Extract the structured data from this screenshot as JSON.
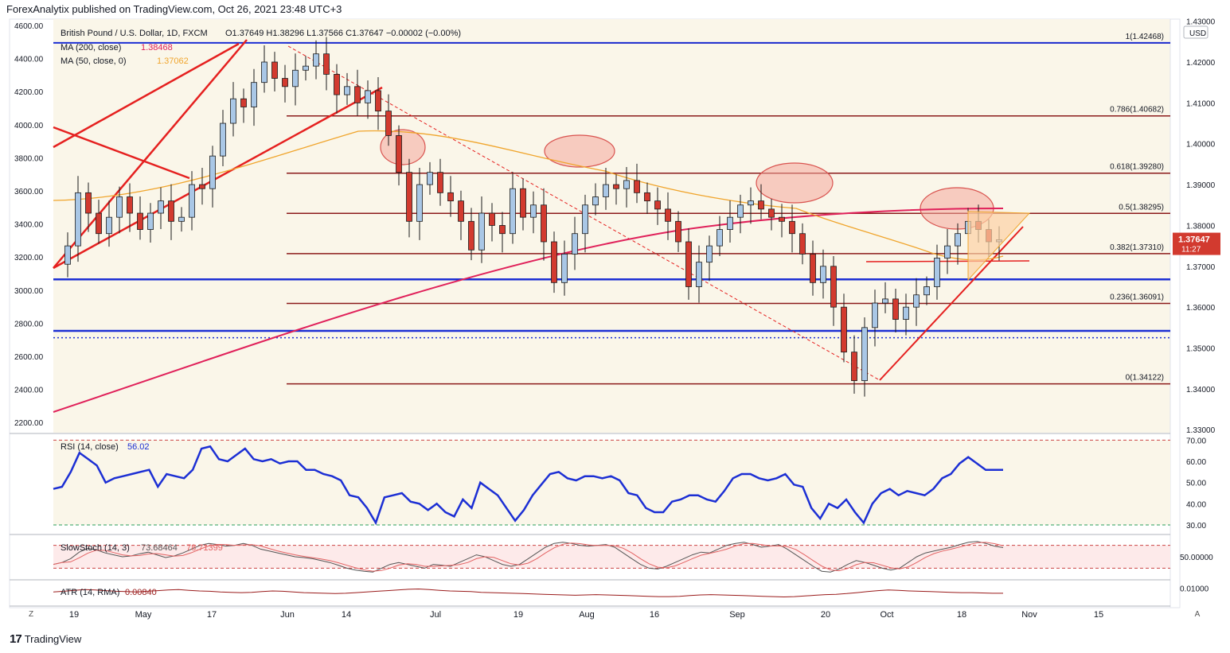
{
  "publisher_line": "ForexAnalytix published on TradingView.com, Oct 26, 2021 23:48 UTC+3",
  "footer_brand": "TradingView",
  "corner_buttons": {
    "left": "Z",
    "right": "A"
  },
  "colors": {
    "up_candle": "#a9c7e6",
    "down_candle": "#d23a2f",
    "ma200": "#e0215a",
    "ma50": "#f0a52d",
    "fib_line": "#8b1a1a",
    "support_blue": "#1c2fd4",
    "trend_red": "#e5201f",
    "rsi_line": "#1c2fd4",
    "stoch_k": "#555555",
    "stoch_d": "#e36363",
    "atr": "#9a1b1b",
    "highlight_ellipse": "#f4a79c",
    "triangle_fill": "#fcd2a4",
    "panel_bg": "#faf6e9"
  },
  "chart_data": [
    {
      "type": "candlestick",
      "title": "British Pound / U.S. Dollar, 1D, FXCM",
      "ohlc_header": {
        "o": "O1.37649",
        "h": "H1.38296",
        "l": "L1.37566",
        "c": "C1.37647",
        "chg": "−0.00002 (−0.00%)"
      },
      "indicators": [
        {
          "label": "MA (200, close)",
          "value": "1.38468"
        },
        {
          "label": "MA (50, close, 0)",
          "value": "1.37062"
        }
      ],
      "currency": "USD",
      "last_price": "1.37647",
      "countdown": "11:27",
      "right_ticks": [
        "1.43000",
        "1.42000",
        "1.41000",
        "1.40000",
        "1.39000",
        "1.38000",
        "1.37000",
        "1.36000",
        "1.35000",
        "1.34000",
        "1.33000"
      ],
      "left_ticks": [
        "4600.00",
        "4400.00",
        "4200.00",
        "4000.00",
        "3800.00",
        "3600.00",
        "3400.00",
        "3200.00",
        "3000.00",
        "2800.00",
        "2600.00",
        "2400.00",
        "2200.00"
      ],
      "fib_levels": [
        {
          "label": "1(1.42468)",
          "price": 1.42468
        },
        {
          "label": "0.786(1.40682)",
          "price": 1.40682
        },
        {
          "label": "0.618(1.39280)",
          "price": 1.3928
        },
        {
          "label": "0.5(1.38295)",
          "price": 1.38295
        },
        {
          "label": "0.382(1.37310)",
          "price": 1.3731
        },
        {
          "label": "0.236(1.36091)",
          "price": 1.36091
        },
        {
          "label": "0(1.34122)",
          "price": 1.34122
        }
      ],
      "support_levels": [
        1.4247,
        1.3668,
        1.3542,
        1.3525
      ],
      "x_ticks": [
        "19",
        "May",
        "17",
        "Jun",
        "14",
        "Jul",
        "19",
        "Aug",
        "16",
        "Sep",
        "20",
        "Oct",
        "18",
        "Nov",
        "15"
      ],
      "close_path": [
        1.3705,
        1.375,
        1.388,
        1.383,
        1.378,
        1.382,
        1.387,
        1.383,
        1.379,
        1.383,
        1.386,
        1.381,
        1.382,
        1.39,
        1.389,
        1.397,
        1.405,
        1.411,
        1.409,
        1.415,
        1.42,
        1.416,
        1.414,
        1.418,
        1.419,
        1.422,
        1.417,
        1.412,
        1.414,
        1.41,
        1.413,
        1.408,
        1.402,
        1.393,
        1.381,
        1.39,
        1.393,
        1.388,
        1.386,
        1.381,
        1.374,
        1.383,
        1.38,
        1.378,
        1.389,
        1.382,
        1.385,
        1.376,
        1.366,
        1.373,
        1.378,
        1.385,
        1.387,
        1.39,
        1.389,
        1.391,
        1.388,
        1.386,
        1.384,
        1.381,
        1.376,
        1.365,
        1.371,
        1.375,
        1.379,
        1.382,
        1.385,
        1.386,
        1.384,
        1.382,
        1.381,
        1.378,
        1.373,
        1.366,
        1.37,
        1.36,
        1.349,
        1.342,
        1.355,
        1.361,
        1.362,
        1.357,
        1.36,
        1.363,
        1.365,
        1.372,
        1.375,
        1.378,
        1.381,
        1.379,
        1.376,
        1.3765
      ]
    },
    {
      "type": "line",
      "title": "RSI (14, close)",
      "last_value": "56.02",
      "ticks": [
        "70.00",
        "60.00",
        "50.00",
        "40.00",
        "30.00"
      ],
      "ylim": [
        27,
        72
      ],
      "values": [
        47,
        48,
        55,
        64,
        61,
        58,
        50,
        52,
        53,
        54,
        55,
        56,
        48,
        54,
        53,
        52,
        56,
        66,
        67,
        61,
        60,
        63,
        66,
        61,
        60,
        61,
        59,
        60,
        60,
        56,
        56,
        54,
        53,
        51,
        44,
        43,
        38,
        31,
        43,
        44,
        45,
        41,
        40,
        37,
        40,
        36,
        34,
        42,
        38,
        50,
        47,
        44,
        38,
        32,
        37,
        44,
        49,
        54,
        55,
        52,
        51,
        53,
        53,
        52,
        53,
        51,
        45,
        44,
        38,
        36,
        36,
        41,
        42,
        44,
        44,
        42,
        41,
        46,
        52,
        54,
        54,
        52,
        51,
        52,
        54,
        49,
        48,
        38,
        33,
        40,
        38,
        42,
        36,
        31,
        40,
        45,
        47,
        44,
        46,
        45,
        44,
        47,
        52,
        54,
        59,
        62,
        59,
        56,
        56,
        56
      ]
    },
    {
      "type": "line",
      "title": "SlowStoch (14, 3)",
      "series": [
        {
          "name": "%K",
          "last_value": "73.68464"
        },
        {
          "name": "%D",
          "last_value": "78.71399"
        }
      ],
      "ticks": [
        "50.00000"
      ],
      "ylim": [
        0,
        100
      ],
      "k_values": [
        30,
        35,
        45,
        62,
        72,
        68,
        60,
        55,
        50,
        52,
        58,
        62,
        55,
        48,
        52,
        60,
        70,
        80,
        85,
        82,
        78,
        80,
        85,
        80,
        70,
        65,
        60,
        55,
        50,
        48,
        45,
        40,
        35,
        28,
        20,
        15,
        12,
        10,
        20,
        30,
        35,
        30,
        25,
        20,
        30,
        28,
        25,
        35,
        45,
        55,
        50,
        40,
        30,
        25,
        30,
        45,
        60,
        75,
        85,
        88,
        85,
        80,
        78,
        80,
        82,
        75,
        60,
        45,
        30,
        20,
        18,
        25,
        35,
        45,
        55,
        62,
        60,
        70,
        80,
        85,
        88,
        82,
        75,
        78,
        82,
        70,
        55,
        40,
        25,
        12,
        10,
        18,
        30,
        40,
        35,
        28,
        20,
        15,
        20,
        35,
        50,
        60,
        65,
        70,
        75,
        82,
        88,
        90,
        85,
        78,
        74
      ]
    },
    {
      "type": "line",
      "title": "ATR (14, RMA)",
      "last_value": "0.00840",
      "ticks": [
        "0.01000"
      ],
      "ylim": [
        0.0055,
        0.0115
      ],
      "values": [
        0.0088,
        0.009,
        0.0093,
        0.0095,
        0.0094,
        0.0092,
        0.009,
        0.0089,
        0.0088,
        0.009,
        0.0092,
        0.0094,
        0.0095,
        0.0093,
        0.0091,
        0.009,
        0.0088,
        0.0087,
        0.0086,
        0.0087,
        0.0089,
        0.0091,
        0.009,
        0.0088,
        0.0086,
        0.0085,
        0.0084,
        0.0083,
        0.0084,
        0.0086,
        0.0088,
        0.009,
        0.0092,
        0.0094,
        0.0096,
        0.0097,
        0.0095,
        0.0093,
        0.0091,
        0.009,
        0.0089,
        0.0087,
        0.0086,
        0.0085,
        0.0084,
        0.0083,
        0.0082,
        0.0081,
        0.008,
        0.0079,
        0.0078,
        0.0079,
        0.008,
        0.0079,
        0.0078,
        0.0077,
        0.0076,
        0.0075,
        0.0074,
        0.0074,
        0.0075,
        0.0077,
        0.0079,
        0.008,
        0.0079,
        0.0078,
        0.0077,
        0.0076,
        0.0075,
        0.0074,
        0.0073,
        0.0074,
        0.0076,
        0.0078,
        0.008,
        0.0081,
        0.0083,
        0.0086,
        0.0089,
        0.0092,
        0.0094,
        0.0093,
        0.0091,
        0.009,
        0.0089,
        0.0088,
        0.0087,
        0.0086,
        0.0086,
        0.0085,
        0.0084,
        0.0084
      ]
    }
  ]
}
